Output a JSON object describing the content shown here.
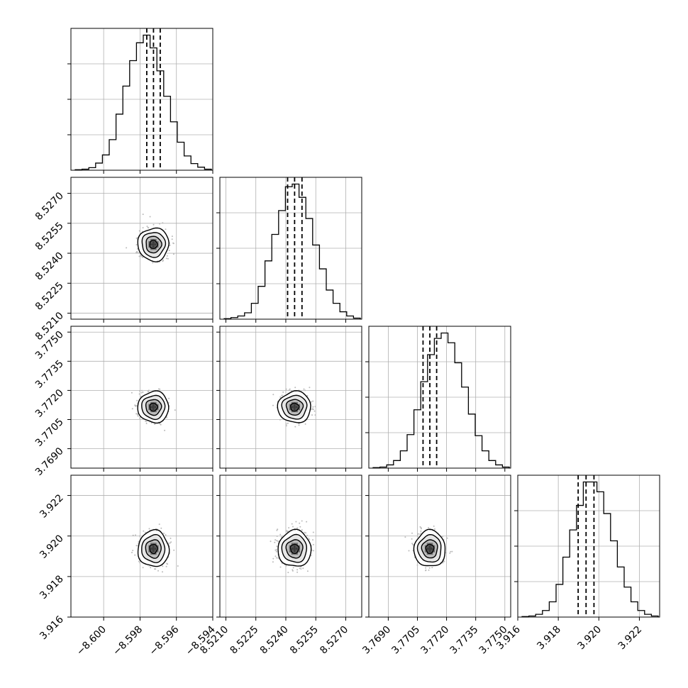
{
  "chart_data": {
    "type": "corner",
    "subtitle": "",
    "params": [
      {
        "ticks": [
          -8.6,
          -8.598,
          -8.596,
          -8.594
        ],
        "tick_labels": [
          "−8.600",
          "−8.598",
          "−8.596",
          "−8.594"
        ],
        "range": [
          -8.6018,
          -8.594
        ],
        "quantiles": [
          -8.59763,
          -8.59726,
          -8.59689
        ]
      },
      {
        "ticks": [
          8.521,
          8.5225,
          8.524,
          8.5255,
          8.527
        ],
        "tick_labels": [
          "8.5210",
          "8.5225",
          "8.5240",
          "8.5255",
          "8.5270"
        ],
        "range": [
          8.5207,
          8.5278
        ],
        "quantiles": [
          8.52409,
          8.52444,
          8.52481
        ]
      },
      {
        "ticks": [
          3.769,
          3.7705,
          3.772,
          3.7735,
          3.775
        ],
        "tick_labels": [
          "3.7690",
          "3.7705",
          "3.7720",
          "3.7735",
          "3.7750"
        ],
        "range": [
          3.768,
          3.7753
        ],
        "quantiles": [
          3.77079,
          3.77114,
          3.77149
        ]
      },
      {
        "ticks": [
          3.916,
          3.918,
          3.92,
          3.922
        ],
        "tick_labels": [
          "3.916",
          "3.918",
          "3.920",
          "3.922"
        ],
        "range": [
          3.916,
          3.923
        ],
        "quantiles": [
          3.91898,
          3.91937,
          3.91976
        ]
      }
    ],
    "histograms": [
      {
        "counts": [
          1,
          2,
          5,
          14,
          30,
          60,
          110,
          165,
          215,
          250,
          265,
          240,
          195,
          145,
          95,
          55,
          28,
          13,
          6,
          2
        ]
      },
      {
        "counts": [
          1,
          3,
          6,
          12,
          30,
          62,
          110,
          160,
          205,
          250,
          255,
          230,
          190,
          140,
          95,
          55,
          30,
          14,
          6,
          2
        ]
      },
      {
        "counts": [
          1,
          2,
          6,
          14,
          32,
          62,
          108,
          160,
          210,
          240,
          250,
          232,
          195,
          150,
          100,
          60,
          32,
          14,
          6,
          2
        ]
      },
      {
        "counts": [
          1,
          2,
          5,
          12,
          28,
          60,
          110,
          160,
          205,
          248,
          248,
          230,
          190,
          140,
          92,
          55,
          28,
          12,
          5,
          2
        ]
      }
    ],
    "joint_means": {
      "1-0": [
        -8.59726,
        8.52444
      ],
      "2-0": [
        -8.59726,
        3.77114
      ],
      "2-1": [
        8.52444,
        3.77114
      ],
      "3-0": [
        -8.59726,
        3.91937
      ],
      "3-1": [
        8.52444,
        3.91937
      ],
      "3-2": [
        3.77114,
        3.91937
      ]
    },
    "joint_sigmas": {
      "1-0": [
        0.00037,
        0.00036
      ],
      "2-0": [
        0.00037,
        0.00035
      ],
      "2-1": [
        0.00036,
        0.00035
      ],
      "3-0": [
        0.00037,
        0.00039
      ],
      "3-1": [
        0.00036,
        0.00039
      ],
      "3-2": [
        0.00035,
        0.00039
      ]
    },
    "contour_levels_sigma": [
      0.5,
      1.0,
      1.5,
      2.0
    ],
    "grid": true,
    "colors": {
      "hist": "#000000",
      "points": "#bbbbbb",
      "contour": "#000000",
      "grid": "#b0b0b0",
      "frame": "#000000"
    }
  }
}
